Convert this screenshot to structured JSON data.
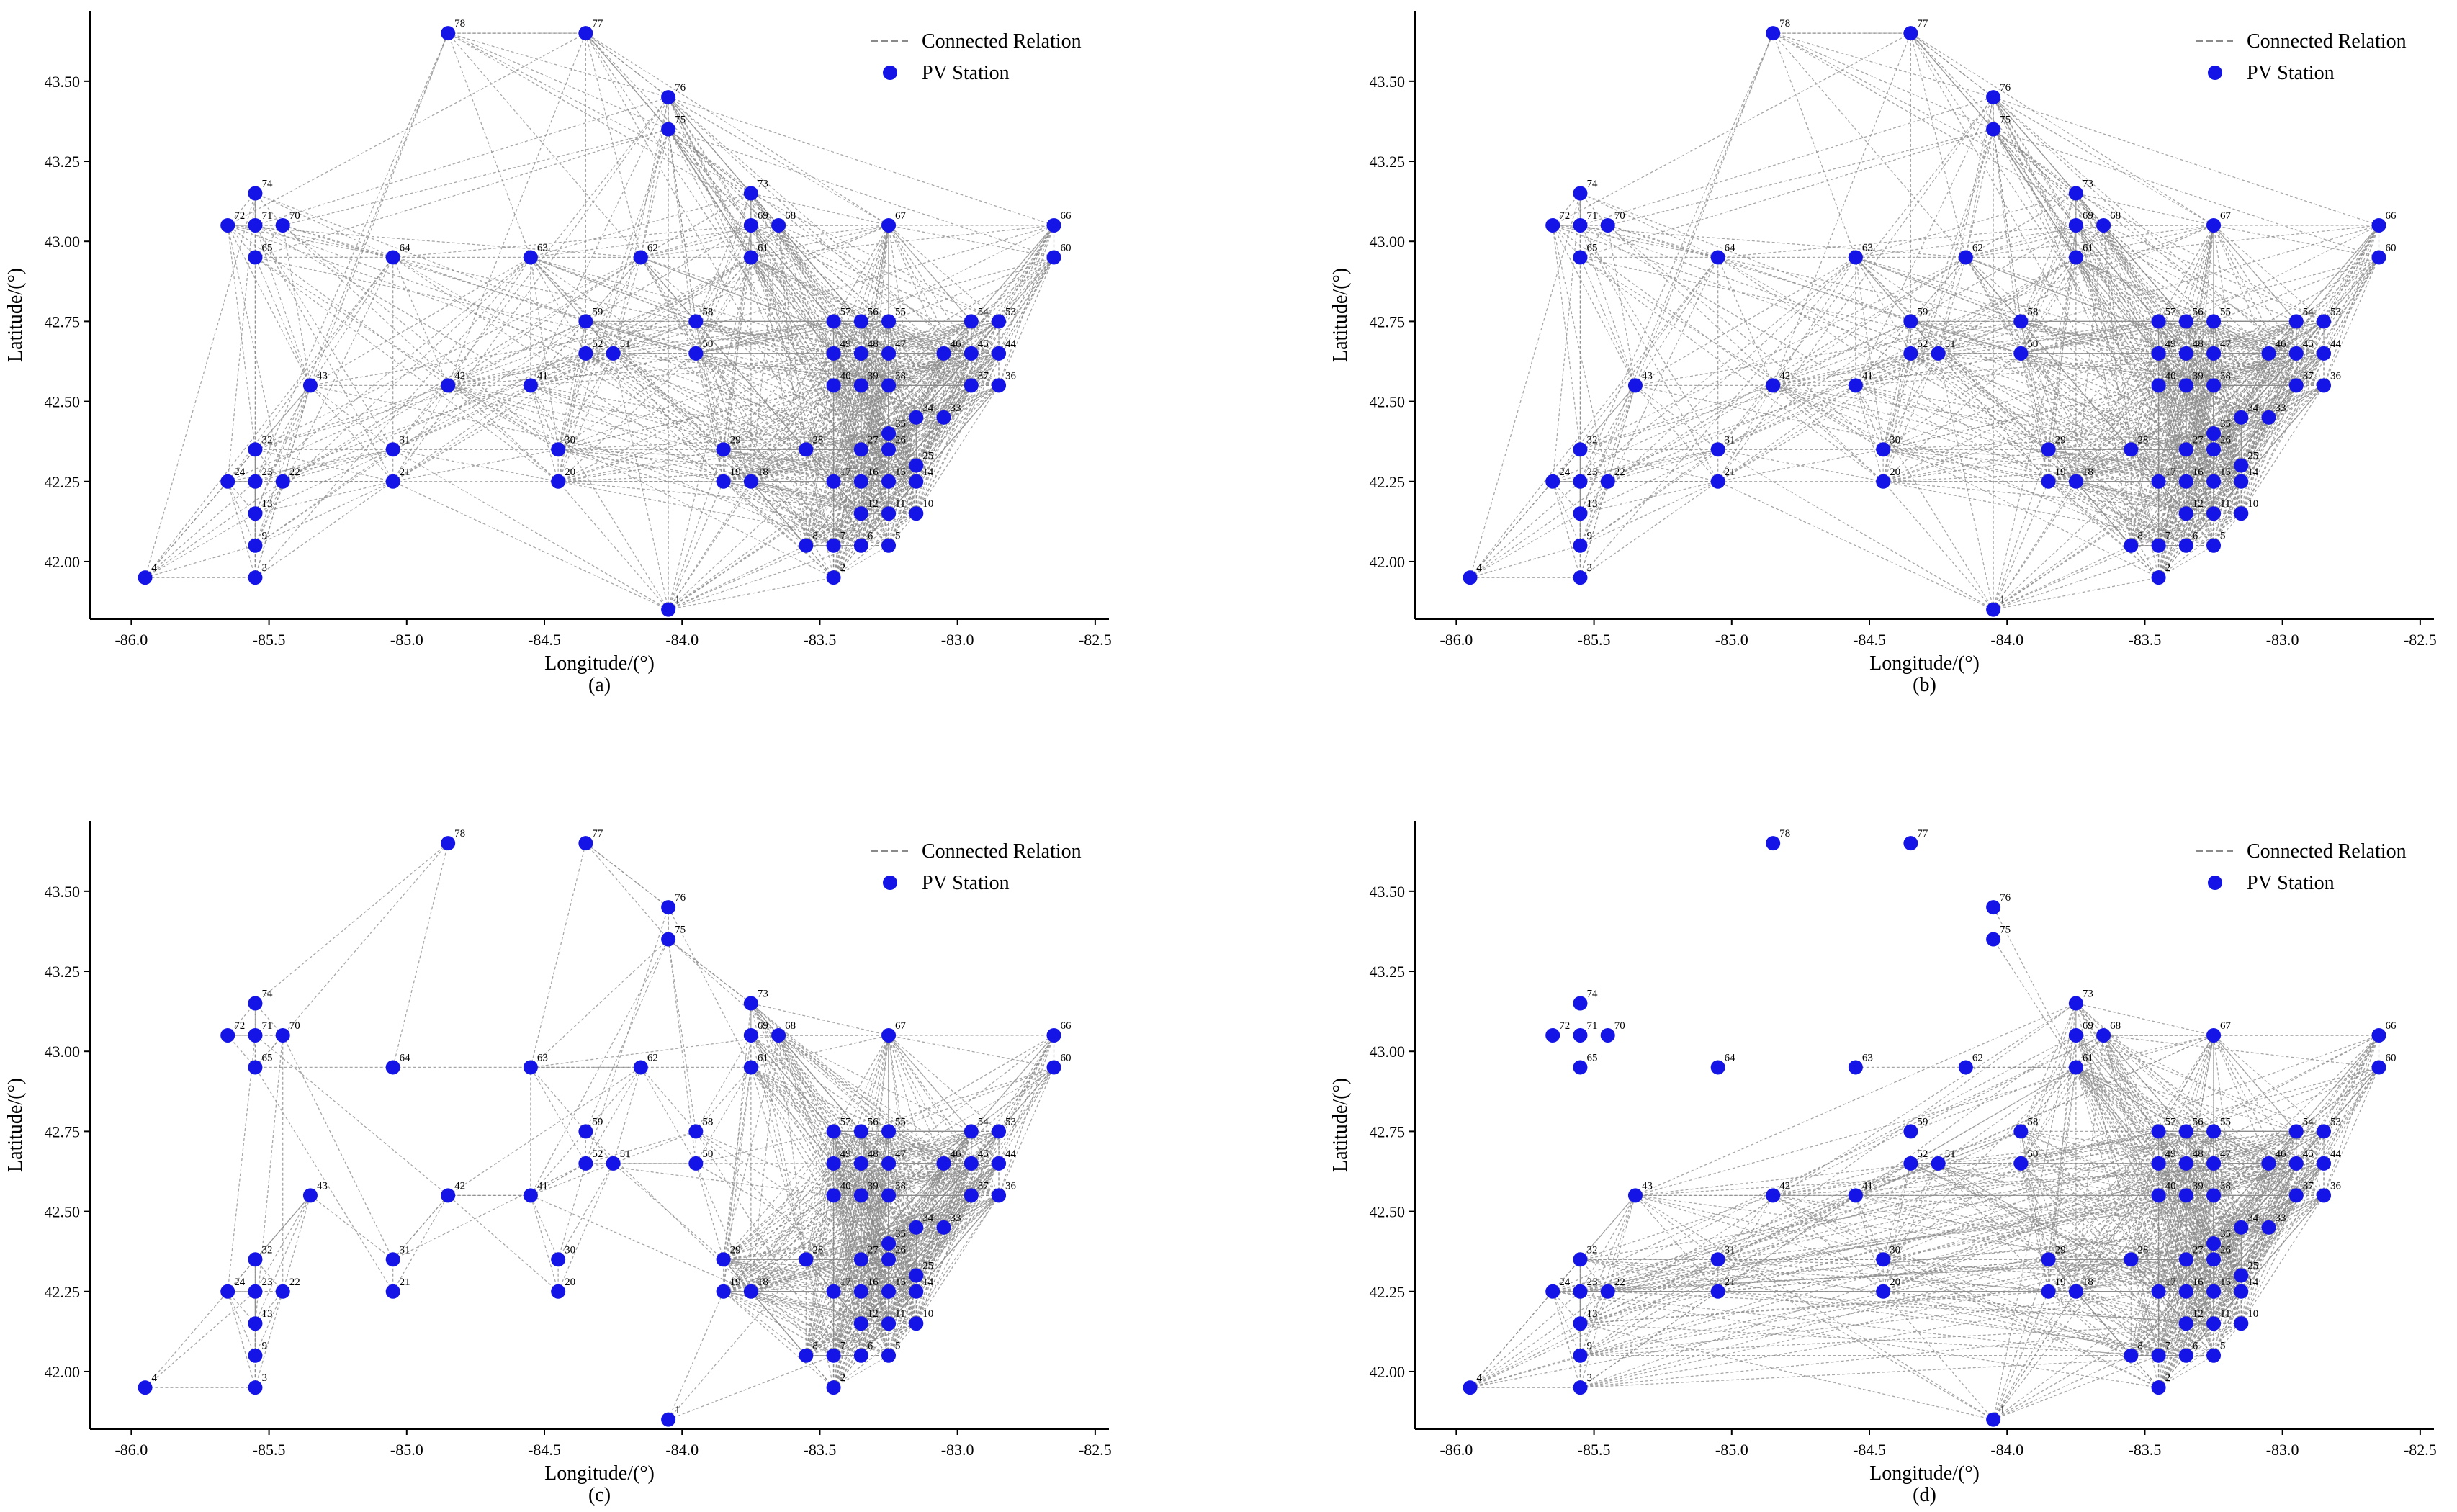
{
  "figure": {
    "point_color": "#1414e6",
    "line_color": "#8a8a8a"
  },
  "chart_data": [
    {
      "type": "scatter",
      "panel_label": "(a)",
      "title": "",
      "xlabel": "Longitude/(°)",
      "ylabel": "Latitude/(°)",
      "xlim": [
        -86.15,
        -82.45
      ],
      "ylim": [
        41.82,
        43.72
      ],
      "xticks": [
        -86.0,
        -85.5,
        -85.0,
        -84.5,
        -84.0,
        -83.5,
        -83.0,
        -82.5
      ],
      "yticks": [
        42.0,
        42.25,
        42.5,
        42.75,
        43.0,
        43.25,
        43.5
      ],
      "legend": {
        "position": "top-right",
        "entries": [
          "Connected Relation",
          "PV Station"
        ]
      },
      "density": "dense",
      "series": [
        {
          "name": "PV Station"
        },
        {
          "name": "Connected Relation"
        }
      ]
    },
    {
      "type": "scatter",
      "panel_label": "(b)",
      "title": "",
      "xlabel": "Longitude/(°)",
      "ylabel": "Latitude/(°)",
      "xlim": [
        -86.15,
        -82.45
      ],
      "ylim": [
        41.82,
        43.72
      ],
      "xticks": [
        -86.0,
        -85.5,
        -85.0,
        -84.5,
        -84.0,
        -83.5,
        -83.0,
        -82.5
      ],
      "yticks": [
        42.0,
        42.25,
        42.5,
        42.75,
        43.0,
        43.25,
        43.5
      ],
      "legend": {
        "position": "top-right",
        "entries": [
          "Connected Relation",
          "PV Station"
        ]
      },
      "density": "dense",
      "series": [
        {
          "name": "PV Station"
        },
        {
          "name": "Connected Relation"
        }
      ]
    },
    {
      "type": "scatter",
      "panel_label": "(c)",
      "title": "",
      "xlabel": "Longitude/(°)",
      "ylabel": "Latitude/(°)",
      "xlim": [
        -86.15,
        -82.45
      ],
      "ylim": [
        41.82,
        43.72
      ],
      "xticks": [
        -86.0,
        -85.5,
        -85.0,
        -84.5,
        -84.0,
        -83.5,
        -83.0,
        -82.5
      ],
      "yticks": [
        42.0,
        42.25,
        42.5,
        42.75,
        43.0,
        43.25,
        43.5
      ],
      "legend": {
        "position": "top-right",
        "entries": [
          "Connected Relation",
          "PV Station"
        ]
      },
      "density": "sparse",
      "series": [
        {
          "name": "PV Station"
        },
        {
          "name": "Connected Relation"
        }
      ]
    },
    {
      "type": "scatter",
      "panel_label": "(d)",
      "title": "",
      "xlabel": "Longitude/(°)",
      "ylabel": "Latitude/(°)",
      "xlim": [
        -86.15,
        -82.45
      ],
      "ylim": [
        41.82,
        43.72
      ],
      "xticks": [
        -86.0,
        -85.5,
        -85.0,
        -84.5,
        -84.0,
        -83.5,
        -83.0,
        -82.5
      ],
      "yticks": [
        42.0,
        42.25,
        42.5,
        42.75,
        43.0,
        43.25,
        43.5
      ],
      "legend": {
        "position": "top-right",
        "entries": [
          "Connected Relation",
          "PV Station"
        ]
      },
      "density": "southern",
      "series": [
        {
          "name": "PV Station"
        },
        {
          "name": "Connected Relation"
        }
      ]
    }
  ],
  "stations": [
    {
      "id": "1",
      "lon": -84.05,
      "lat": 41.85
    },
    {
      "id": "2",
      "lon": -83.45,
      "lat": 41.95
    },
    {
      "id": "3",
      "lon": -85.55,
      "lat": 41.95
    },
    {
      "id": "4",
      "lon": -85.95,
      "lat": 41.95
    },
    {
      "id": "5",
      "lon": -83.25,
      "lat": 42.05
    },
    {
      "id": "6",
      "lon": -83.35,
      "lat": 42.05
    },
    {
      "id": "7",
      "lon": -83.45,
      "lat": 42.05
    },
    {
      "id": "8",
      "lon": -83.55,
      "lat": 42.05
    },
    {
      "id": "9",
      "lon": -85.55,
      "lat": 42.05
    },
    {
      "id": "10",
      "lon": -83.15,
      "lat": 42.15
    },
    {
      "id": "11",
      "lon": -83.25,
      "lat": 42.15
    },
    {
      "id": "12",
      "lon": -83.35,
      "lat": 42.15
    },
    {
      "id": "13",
      "lon": -85.55,
      "lat": 42.15
    },
    {
      "id": "14",
      "lon": -83.15,
      "lat": 42.25
    },
    {
      "id": "15",
      "lon": -83.25,
      "lat": 42.25
    },
    {
      "id": "16",
      "lon": -83.35,
      "lat": 42.25
    },
    {
      "id": "17",
      "lon": -83.45,
      "lat": 42.25
    },
    {
      "id": "18",
      "lon": -83.75,
      "lat": 42.25
    },
    {
      "id": "19",
      "lon": -83.85,
      "lat": 42.25
    },
    {
      "id": "20",
      "lon": -84.45,
      "lat": 42.25
    },
    {
      "id": "21",
      "lon": -85.05,
      "lat": 42.25
    },
    {
      "id": "22",
      "lon": -85.45,
      "lat": 42.25
    },
    {
      "id": "23",
      "lon": -85.55,
      "lat": 42.25
    },
    {
      "id": "24",
      "lon": -85.65,
      "lat": 42.25
    },
    {
      "id": "25",
      "lon": -83.15,
      "lat": 42.3
    },
    {
      "id": "26",
      "lon": -83.25,
      "lat": 42.35
    },
    {
      "id": "27",
      "lon": -83.35,
      "lat": 42.35
    },
    {
      "id": "28",
      "lon": -83.55,
      "lat": 42.35
    },
    {
      "id": "29",
      "lon": -83.85,
      "lat": 42.35
    },
    {
      "id": "30",
      "lon": -84.45,
      "lat": 42.35
    },
    {
      "id": "31",
      "lon": -85.05,
      "lat": 42.35
    },
    {
      "id": "32",
      "lon": -85.55,
      "lat": 42.35
    },
    {
      "id": "33",
      "lon": -83.05,
      "lat": 42.45
    },
    {
      "id": "34",
      "lon": -83.15,
      "lat": 42.45
    },
    {
      "id": "35",
      "lon": -83.25,
      "lat": 42.4
    },
    {
      "id": "36",
      "lon": -82.85,
      "lat": 42.55
    },
    {
      "id": "37",
      "lon": -82.95,
      "lat": 42.55
    },
    {
      "id": "38",
      "lon": -83.25,
      "lat": 42.55
    },
    {
      "id": "39",
      "lon": -83.35,
      "lat": 42.55
    },
    {
      "id": "40",
      "lon": -83.45,
      "lat": 42.55
    },
    {
      "id": "41",
      "lon": -84.55,
      "lat": 42.55
    },
    {
      "id": "42",
      "lon": -84.85,
      "lat": 42.55
    },
    {
      "id": "43",
      "lon": -85.35,
      "lat": 42.55
    },
    {
      "id": "44",
      "lon": -82.85,
      "lat": 42.65
    },
    {
      "id": "45",
      "lon": -82.95,
      "lat": 42.65
    },
    {
      "id": "46",
      "lon": -83.05,
      "lat": 42.65
    },
    {
      "id": "47",
      "lon": -83.25,
      "lat": 42.65
    },
    {
      "id": "48",
      "lon": -83.35,
      "lat": 42.65
    },
    {
      "id": "49",
      "lon": -83.45,
      "lat": 42.65
    },
    {
      "id": "50",
      "lon": -83.95,
      "lat": 42.65
    },
    {
      "id": "51",
      "lon": -84.25,
      "lat": 42.65
    },
    {
      "id": "52",
      "lon": -84.35,
      "lat": 42.65
    },
    {
      "id": "53",
      "lon": -82.85,
      "lat": 42.75
    },
    {
      "id": "54",
      "lon": -82.95,
      "lat": 42.75
    },
    {
      "id": "55",
      "lon": -83.25,
      "lat": 42.75
    },
    {
      "id": "56",
      "lon": -83.35,
      "lat": 42.75
    },
    {
      "id": "57",
      "lon": -83.45,
      "lat": 42.75
    },
    {
      "id": "58",
      "lon": -83.95,
      "lat": 42.75
    },
    {
      "id": "59",
      "lon": -84.35,
      "lat": 42.75
    },
    {
      "id": "60",
      "lon": -82.65,
      "lat": 42.95
    },
    {
      "id": "61",
      "lon": -83.75,
      "lat": 42.95
    },
    {
      "id": "62",
      "lon": -84.15,
      "lat": 42.95
    },
    {
      "id": "63",
      "lon": -84.55,
      "lat": 42.95
    },
    {
      "id": "64",
      "lon": -85.05,
      "lat": 42.95
    },
    {
      "id": "65",
      "lon": -85.55,
      "lat": 42.95
    },
    {
      "id": "66",
      "lon": -82.65,
      "lat": 43.05
    },
    {
      "id": "67",
      "lon": -83.25,
      "lat": 43.05
    },
    {
      "id": "68",
      "lon": -83.65,
      "lat": 43.05
    },
    {
      "id": "69",
      "lon": -83.75,
      "lat": 43.05
    },
    {
      "id": "70",
      "lon": -85.45,
      "lat": 43.05
    },
    {
      "id": "71",
      "lon": -85.55,
      "lat": 43.05
    },
    {
      "id": "72",
      "lon": -85.65,
      "lat": 43.05
    },
    {
      "id": "73",
      "lon": -83.75,
      "lat": 43.15
    },
    {
      "id": "74",
      "lon": -85.55,
      "lat": 43.15
    },
    {
      "id": "75",
      "lon": -84.05,
      "lat": 43.35
    },
    {
      "id": "76",
      "lon": -84.05,
      "lat": 43.45
    },
    {
      "id": "77",
      "lon": -84.35,
      "lat": 43.65
    },
    {
      "id": "78",
      "lon": -84.85,
      "lat": 43.65
    }
  ]
}
